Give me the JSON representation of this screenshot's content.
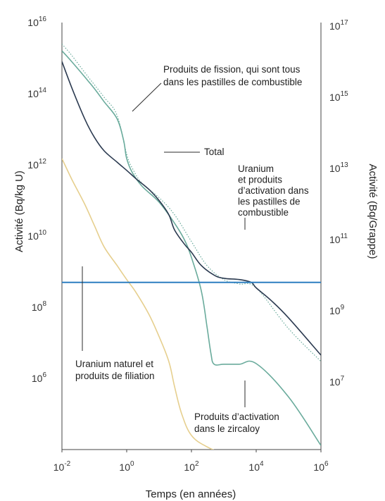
{
  "chart_data": {
    "type": "line",
    "xlabel": "Temps (en années)",
    "ylabel_left": "Activité (Bq/kg U)",
    "ylabel_right": "Activité (Bq/Grappe)",
    "x_scale": "log",
    "y_scale": "log",
    "xlim": [
      0.01,
      1000000
    ],
    "ylim_left": [
      10000,
      1e+16
    ],
    "x_ticks": [
      {
        "base": "10",
        "exp": "-2"
      },
      {
        "base": "10",
        "exp": "0"
      },
      {
        "base": "10",
        "exp": "2"
      },
      {
        "base": "10",
        "exp": "4"
      },
      {
        "base": "10",
        "exp": "6"
      }
    ],
    "y_ticks_left": [
      {
        "base": "10",
        "exp": "6"
      },
      {
        "base": "10",
        "exp": "8"
      },
      {
        "base": "10",
        "exp": "10"
      },
      {
        "base": "10",
        "exp": "12"
      },
      {
        "base": "10",
        "exp": "14"
      },
      {
        "base": "10",
        "exp": "16"
      }
    ],
    "y_ticks_right": [
      {
        "base": "10",
        "exp": "7"
      },
      {
        "base": "10",
        "exp": "9"
      },
      {
        "base": "10",
        "exp": "11"
      },
      {
        "base": "10",
        "exp": "13"
      },
      {
        "base": "10",
        "exp": "15"
      },
      {
        "base": "10",
        "exp": "17"
      }
    ],
    "series": [
      {
        "key": "fission",
        "color": "#6aab9c",
        "dash": "solid",
        "x": [
          0.01,
          0.02,
          0.05,
          0.1,
          0.2,
          0.5,
          0.8,
          1,
          1.5,
          3,
          10,
          30,
          60,
          100,
          200,
          300,
          400,
          500,
          1000,
          3000,
          10000,
          100000,
          1000000
        ],
        "y": [
          1600000000000000.0,
          800000000000000.0,
          300000000000000.0,
          140000000000000.0,
          60000000000000.0,
          20000000000000.0,
          5000000000000.0,
          1500000000000.0,
          600000000000.0,
          250000000000.0,
          90000000000.0,
          23000000000.0,
          8000000000.0,
          2500000000.0,
          300000000.0,
          30000000.0,
          5000000.0,
          2500000.0,
          2500000.0,
          2500000.0,
          2600000.0,
          300000.0,
          13000.0
        ]
      },
      {
        "key": "total",
        "color": "#6aab9c",
        "dash": "dotted",
        "x": [
          0.01,
          0.02,
          0.05,
          0.1,
          0.2,
          0.5,
          1,
          1.5,
          3,
          10,
          30,
          100,
          300,
          1000,
          3000,
          10000,
          100000,
          1000000
        ],
        "y": [
          2500000000000000.0,
          1200000000000000.0,
          400000000000000.0,
          180000000000000.0,
          80000000000000.0,
          25000000000000.0,
          2000000000000.0,
          800000000000.0,
          300000000000.0,
          120000000000.0,
          40000000000.0,
          7000000000.0,
          1500000000.0,
          600000000.0,
          450000000.0,
          350000000.0,
          25000000.0,
          3000000.0
        ]
      },
      {
        "key": "uranium_activation",
        "color": "#2b3a50",
        "dash": "solid",
        "x": [
          0.01,
          0.02,
          0.05,
          0.1,
          0.2,
          0.5,
          1,
          2,
          5,
          10,
          20,
          30,
          60,
          100,
          200,
          500,
          1000,
          3000,
          7000,
          10000,
          30000,
          100000,
          1000000
        ],
        "y": [
          800000000000000.0,
          150000000000000.0,
          20000000000000.0,
          6000000000000.0,
          2500000000000.0,
          1200000000000.0,
          700000000000.0,
          400000000000.0,
          200000000000.0,
          100000000000.0,
          40000000000.0,
          15000000000.0,
          6000000000.0,
          3500000000.0,
          1500000000.0,
          800000000.0,
          650000000.0,
          600000000.0,
          500000000.0,
          350000000.0,
          150000000.0,
          50000000.0,
          4500000.0
        ]
      },
      {
        "key": "zircaloy",
        "color": "#e6cf8e",
        "dash": "solid",
        "x": [
          0.01,
          0.02,
          0.05,
          0.1,
          0.2,
          0.5,
          1,
          2,
          5,
          10,
          20,
          30,
          50,
          100,
          300,
          1000,
          10000,
          100000,
          1000000
        ],
        "y": [
          1500000000000.0,
          400000000000.0,
          80000000000.0,
          20000000000.0,
          5000000000.0,
          1500000000.0,
          600000000.0,
          250000000.0,
          60000000.0,
          15000000.0,
          3000000.0,
          600000.0,
          100000.0,
          25000.0,
          12000.0,
          8000.0,
          5000.0,
          3000.0,
          1800.0
        ]
      },
      {
        "key": "natural_uranium",
        "color": "#2d7fc1",
        "dash": "solid",
        "x": [
          0.01,
          1000000
        ],
        "y": [
          500000000.0,
          500000000.0
        ]
      }
    ],
    "annotations": [
      {
        "key": "fission",
        "lines": [
          "Produits de fission, qui sont tous",
          "dans les pastilles de combustible"
        ]
      },
      {
        "key": "total",
        "lines": [
          "Total"
        ]
      },
      {
        "key": "uranium_activation",
        "lines": [
          "Uranium",
          "et produits",
          "d’activation dans",
          "les pastilles de",
          "combustible"
        ]
      },
      {
        "key": "natural_uranium",
        "lines": [
          "Uranium naturel et",
          "produits de filiation"
        ]
      },
      {
        "key": "zircaloy",
        "lines": [
          "Produits d’activation",
          "dans le zircaloy"
        ]
      }
    ]
  }
}
